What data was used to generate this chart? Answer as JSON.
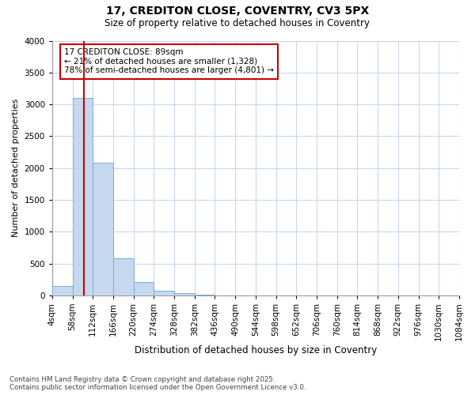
{
  "title1": "17, CREDITON CLOSE, COVENTRY, CV3 5PX",
  "title2": "Size of property relative to detached houses in Coventry",
  "xlabel": "Distribution of detached houses by size in Coventry",
  "ylabel": "Number of detached properties",
  "bin_edges": [
    4,
    58,
    112,
    166,
    220,
    274,
    328,
    382,
    436,
    490,
    544,
    598,
    652,
    706,
    760,
    814,
    868,
    922,
    976,
    1030,
    1084
  ],
  "bar_heights": [
    150,
    3100,
    2080,
    580,
    210,
    70,
    40,
    10,
    3,
    0,
    0,
    0,
    0,
    0,
    0,
    0,
    0,
    0,
    0,
    0
  ],
  "bar_color": "#c5d8f0",
  "bar_edge_color": "#7aafd4",
  "property_size": 89,
  "vline_color": "#cc0000",
  "annotation_text": "17 CREDITON CLOSE: 89sqm\n← 21% of detached houses are smaller (1,328)\n78% of semi-detached houses are larger (4,801) →",
  "annotation_box_color": "#cc0000",
  "ylim": [
    0,
    4000
  ],
  "yticks": [
    0,
    500,
    1000,
    1500,
    2000,
    2500,
    3000,
    3500,
    4000
  ],
  "bg_color": "#ffffff",
  "grid_color": "#c8d8f0",
  "footer1": "Contains HM Land Registry data © Crown copyright and database right 2025.",
  "footer2": "Contains public sector information licensed under the Open Government Licence v3.0."
}
